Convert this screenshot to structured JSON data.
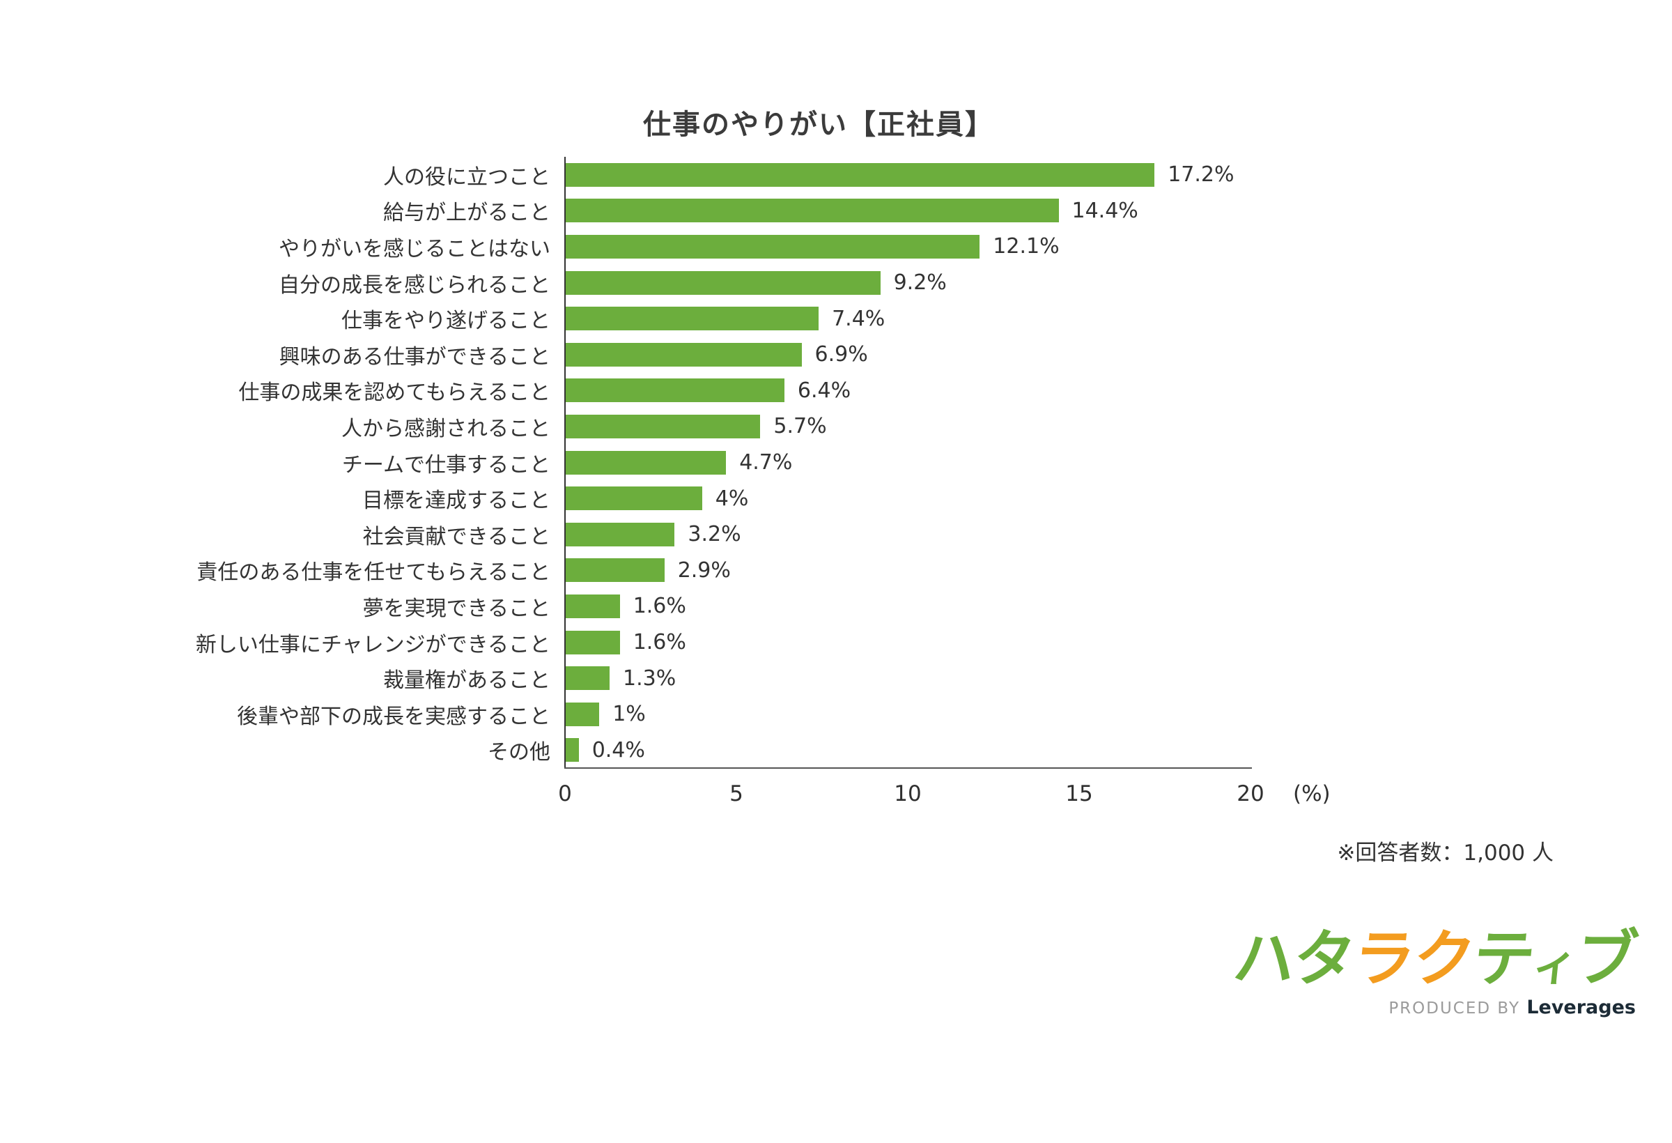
{
  "title": "仕事のやりがい【正社員】",
  "note": "※回答者数：1,000 人",
  "chart_data": {
    "type": "bar",
    "orientation": "horizontal",
    "title": "仕事のやりがい【正社員】",
    "categories": [
      "人の役に立つこと",
      "給与が上がること",
      "やりがいを感じることはない",
      "自分の成長を感じられること",
      "仕事をやり遂げること",
      "興味のある仕事ができること",
      "仕事の成果を認めてもらえること",
      "人から感謝されること",
      "チームで仕事すること",
      "目標を達成すること",
      "社会貢献できること",
      "責任のある仕事を任せてもらえること",
      "夢を実現できること",
      "新しい仕事にチャレンジができること",
      "裁量権があること",
      "後輩や部下の成長を実感すること",
      "その他"
    ],
    "values": [
      17.2,
      14.4,
      12.1,
      9.2,
      7.4,
      6.9,
      6.4,
      5.7,
      4.7,
      4,
      3.2,
      2.9,
      1.6,
      1.6,
      1.3,
      1,
      0.4
    ],
    "value_labels": [
      "17.2%",
      "14.4%",
      "12.1%",
      "9.2%",
      "7.4%",
      "6.9%",
      "6.4%",
      "5.7%",
      "4.7%",
      "4%",
      "3.2%",
      "2.9%",
      "1.6%",
      "1.6%",
      "1.3%",
      "1%",
      "0.4%"
    ],
    "xlabel": "",
    "ylabel": "",
    "xlim": [
      0,
      20
    ],
    "x_ticks": [
      "0",
      "5",
      "10",
      "15",
      "20"
    ],
    "x_unit": "(%)",
    "grid": false,
    "legend": "none",
    "bar_color": "#6cae3d"
  },
  "colors": {
    "bar": "#6cae3d",
    "logo_green": "#6cae3d",
    "logo_orange": "#f39c1f",
    "text": "#333333"
  },
  "logo": {
    "name": "ハタラクティブ",
    "chars": [
      {
        "ch": "ハ",
        "color": "#6cae3d"
      },
      {
        "ch": "タ",
        "color": "#6cae3d"
      },
      {
        "ch": "ラ",
        "color": "#f39c1f"
      },
      {
        "ch": "ク",
        "color": "#f39c1f"
      },
      {
        "ch": "テ",
        "color": "#6cae3d"
      },
      {
        "ch": "ィ",
        "color": "#6cae3d"
      },
      {
        "ch": "ブ",
        "color": "#6cae3d"
      }
    ],
    "produced_by": "PRODUCED BY",
    "company": "Leverages"
  }
}
